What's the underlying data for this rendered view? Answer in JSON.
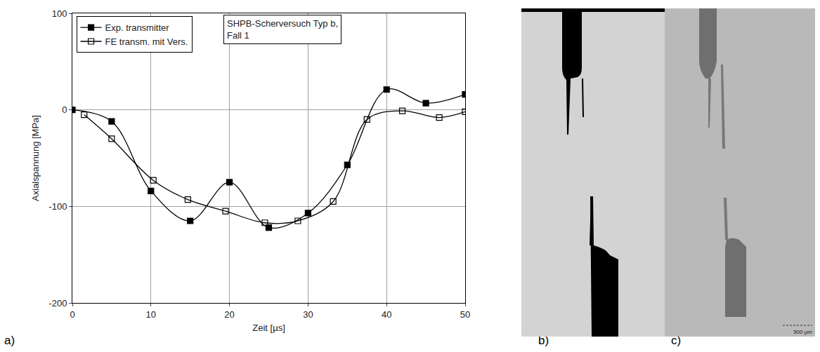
{
  "chart_data": {
    "type": "line",
    "xlabel": "Zeit [µs]",
    "ylabel": "Axialspannung [MPa]",
    "annotation": [
      "SHPB-Scherversuch Typ b,",
      "Fall 1"
    ],
    "xlim": [
      0,
      50
    ],
    "xticks": [
      0,
      10,
      20,
      30,
      40,
      50
    ],
    "ylim": [
      -200,
      100
    ],
    "yticks": [
      -200,
      -100,
      0,
      100
    ],
    "grid": true,
    "legend": "upper left",
    "series": [
      {
        "name": "Exp. transmitter",
        "color": "#000000",
        "marker": "square",
        "line_style": "spline",
        "x": [
          0,
          5,
          10,
          15,
          20,
          25,
          30,
          35,
          40,
          45,
          50
        ],
        "values": [
          0,
          -12,
          -84,
          -115,
          -75,
          -122,
          -107,
          -57,
          21,
          7,
          16
        ]
      },
      {
        "name": "FE transm. mit Vers.",
        "color": "#000000",
        "marker": "square-open",
        "line_style": "spline",
        "x": [
          1.5,
          5,
          10.3,
          14.7,
          19.5,
          24.5,
          28.7,
          33.2,
          37.5,
          42,
          46.7,
          50
        ],
        "values": [
          -5,
          -30,
          -73,
          -93,
          -105,
          -117,
          -115,
          -95,
          -10,
          -1,
          -8,
          -2
        ]
      }
    ]
  },
  "panel_labels": [
    "a)",
    "b)",
    "c)"
  ],
  "scale_bar": "500 µm"
}
